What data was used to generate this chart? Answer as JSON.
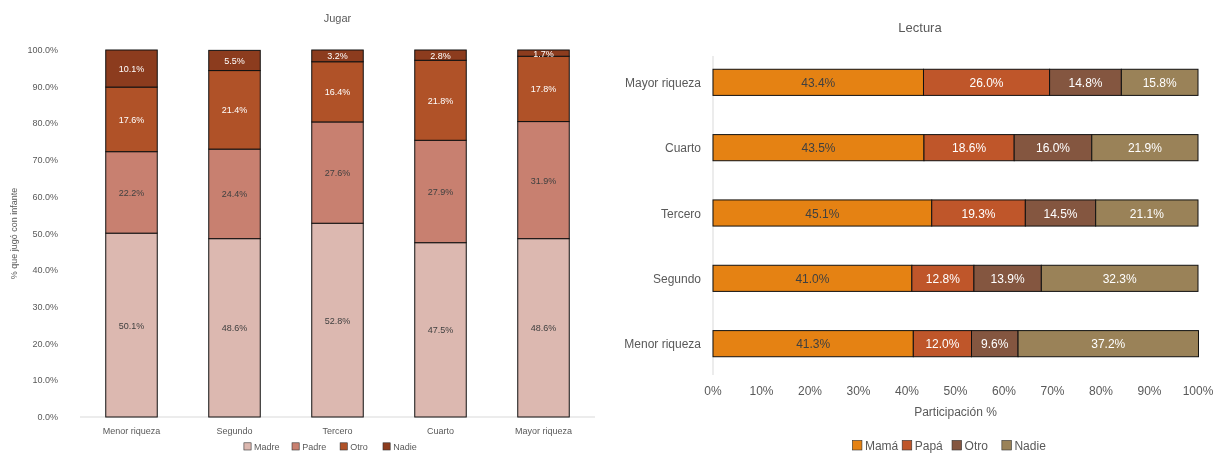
{
  "chart_data": [
    {
      "type": "bar",
      "title": "Jugar",
      "ylabel": "% que jugó con infante",
      "stacked": true,
      "categories": [
        "Menor riqueza",
        "Segundo",
        "Tercero",
        "Cuarto",
        "Mayor riqueza"
      ],
      "series": [
        {
          "name": "Madre",
          "color": "#dcb8b0",
          "values": [
            50.1,
            48.6,
            52.8,
            47.5,
            48.6
          ],
          "value_labels": [
            "50.1%",
            "48.6%",
            "52.8%",
            "47.5%",
            "48.6%"
          ]
        },
        {
          "name": "Padre",
          "color": "#c88070",
          "values": [
            22.2,
            24.4,
            27.6,
            27.9,
            31.9
          ],
          "value_labels": [
            "22.2%",
            "24.4%",
            "27.6%",
            "27.9%",
            "31.9%"
          ]
        },
        {
          "name": "Otro",
          "color": "#b05228",
          "values": [
            17.6,
            21.4,
            16.4,
            21.8,
            17.8
          ],
          "value_labels": [
            "17.6%",
            "21.4%",
            "16.4%",
            "21.8%",
            "17.8%"
          ]
        },
        {
          "name": "Nadie",
          "color": "#8c3c1e",
          "values": [
            10.1,
            5.5,
            3.2,
            2.8,
            1.7
          ],
          "value_labels": [
            "10.1%",
            "5.5%",
            "3.2%",
            "2.8%",
            "1.7%"
          ]
        }
      ],
      "ylim": [
        0,
        100
      ],
      "yticks": [
        {
          "value": 0,
          "label": "0.0%"
        },
        {
          "value": 10,
          "label": "10.0%"
        },
        {
          "value": 20,
          "label": "20.0%"
        },
        {
          "value": 30,
          "label": "30.0%"
        },
        {
          "value": 40,
          "label": "40.0%"
        },
        {
          "value": 50,
          "label": "50.0%"
        },
        {
          "value": 60,
          "label": "60.0%"
        },
        {
          "value": 70,
          "label": "70.0%"
        },
        {
          "value": 80,
          "label": "80.0%"
        },
        {
          "value": 90,
          "label": "90.0%"
        },
        {
          "value": 100,
          "label": "100.0%"
        }
      ],
      "legend": "bottom"
    },
    {
      "type": "bar",
      "title": "Lectura",
      "xlabel": "Participación %",
      "stacked": true,
      "orientation": "horizontal",
      "categories": [
        "Mayor riqueza",
        "Cuarto",
        "Tercero",
        "Segundo",
        "Menor riqueza"
      ],
      "series": [
        {
          "name": "Mamá",
          "color": "#e58213",
          "values": [
            43.4,
            43.5,
            45.1,
            41.0,
            41.3
          ],
          "value_labels": [
            "43.4%",
            "43.5%",
            "45.1%",
            "41.0%",
            "41.3%"
          ]
        },
        {
          "name": "Papá",
          "color": "#bf562a",
          "values": [
            26.0,
            18.6,
            19.3,
            12.8,
            12.0
          ],
          "value_labels": [
            "26.0%",
            "18.6%",
            "19.3%",
            "12.8%",
            "12.0%"
          ]
        },
        {
          "name": "Otro",
          "color": "#845640",
          "values": [
            14.8,
            16.0,
            14.5,
            13.9,
            9.6
          ],
          "value_labels": [
            "14.8%",
            "16.0%",
            "14.5%",
            "13.9%",
            "9.6%"
          ]
        },
        {
          "name": "Nadie",
          "color": "#9a8258",
          "values": [
            15.8,
            21.9,
            21.1,
            32.3,
            37.2
          ],
          "value_labels": [
            "15.8%",
            "21.9%",
            "21.1%",
            "32.3%",
            "37.2%"
          ]
        }
      ],
      "xlim": [
        0,
        100
      ],
      "xticks": [
        {
          "value": 0,
          "label": "0%"
        },
        {
          "value": 10,
          "label": "10%"
        },
        {
          "value": 20,
          "label": "20%"
        },
        {
          "value": 30,
          "label": "30%"
        },
        {
          "value": 40,
          "label": "40%"
        },
        {
          "value": 50,
          "label": "50%"
        },
        {
          "value": 60,
          "label": "60%"
        },
        {
          "value": 70,
          "label": "70%"
        },
        {
          "value": 80,
          "label": "80%"
        },
        {
          "value": 90,
          "label": "90%"
        },
        {
          "value": 100,
          "label": "100%"
        }
      ],
      "legend": "bottom"
    }
  ]
}
